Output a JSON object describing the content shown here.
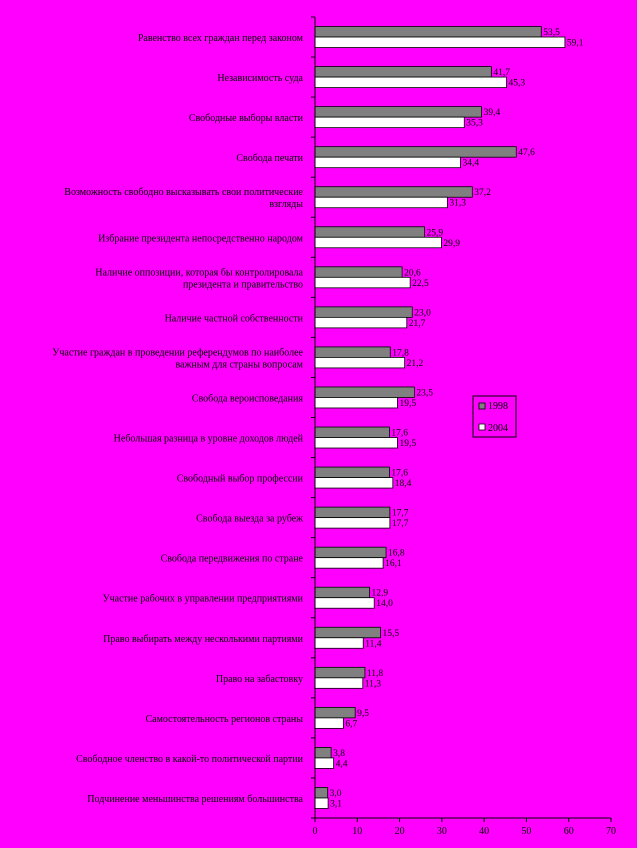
{
  "chart_data": {
    "type": "bar",
    "orientation": "horizontal",
    "xlim": [
      0,
      70
    ],
    "xticks": [
      0,
      10,
      20,
      30,
      40,
      50,
      60,
      70
    ],
    "grid": false,
    "legend_position": "right",
    "colors": {
      "background": "#ff00ff",
      "series_1998": "#808080",
      "series_2004": "#ffffff"
    },
    "categories": [
      [
        "Равенство всех граждан перед законом"
      ],
      [
        "Независимость суда"
      ],
      [
        "Свободные выборы власти"
      ],
      [
        "Свобода печати"
      ],
      [
        "Возможность свободно высказывать свои политические",
        "взгляды"
      ],
      [
        "Избрание президента непосредственно народом"
      ],
      [
        "Наличие оппозиции, которая бы контролировала",
        "президента и правительство"
      ],
      [
        "Наличие частной собственности"
      ],
      [
        "Участие граждан в проведении референдумов по наиболее",
        "важным для страны вопросам"
      ],
      [
        "Свобода вероисповедания"
      ],
      [
        "Небольшая разница в уровне доходов людей"
      ],
      [
        "Свободный выбор профессии"
      ],
      [
        "Свобода выезда за рубеж"
      ],
      [
        "Свобода передвижения по стране"
      ],
      [
        "Участие рабочих в управлении предприятиями"
      ],
      [
        "Право выбирать между несколькими партиями"
      ],
      [
        "Право на забастовку"
      ],
      [
        "Самостоятельность регионов страны"
      ],
      [
        "Свободное членство в какой-то политической партии"
      ],
      [
        "Подчинение меньшинства решениям большинства"
      ]
    ],
    "series": [
      {
        "name": "1998",
        "values": [
          53.5,
          41.7,
          39.4,
          47.6,
          37.2,
          25.9,
          20.6,
          23.0,
          17.8,
          23.5,
          17.6,
          17.6,
          17.7,
          16.8,
          12.9,
          15.5,
          11.8,
          9.5,
          3.8,
          3.0
        ],
        "labels": [
          "53,5",
          "41,7",
          "39,4",
          "47,6",
          "37,2",
          "25,9",
          "20,6",
          "23,0",
          "17,8",
          "23,5",
          "17,6",
          "17,6",
          "17,7",
          "16,8",
          "12,9",
          "15,5",
          "11,8",
          "9,5",
          "3,8",
          "3,0"
        ]
      },
      {
        "name": "2004",
        "values": [
          59.1,
          45.3,
          35.3,
          34.4,
          31.3,
          29.9,
          22.5,
          21.7,
          21.2,
          19.5,
          19.5,
          18.4,
          17.7,
          16.1,
          14.0,
          11.4,
          11.3,
          6.7,
          4.4,
          3.1
        ],
        "labels": [
          "59,1",
          "45,3",
          "35,3",
          "34,4",
          "31,3",
          "29,9",
          "22,5",
          "21,7",
          "21,2",
          "19,5",
          "19,5",
          "18,4",
          "17,7",
          "16,1",
          "14,0",
          "11,4",
          "11,3",
          "6,7",
          "4,4",
          "3,1"
        ]
      }
    ]
  }
}
